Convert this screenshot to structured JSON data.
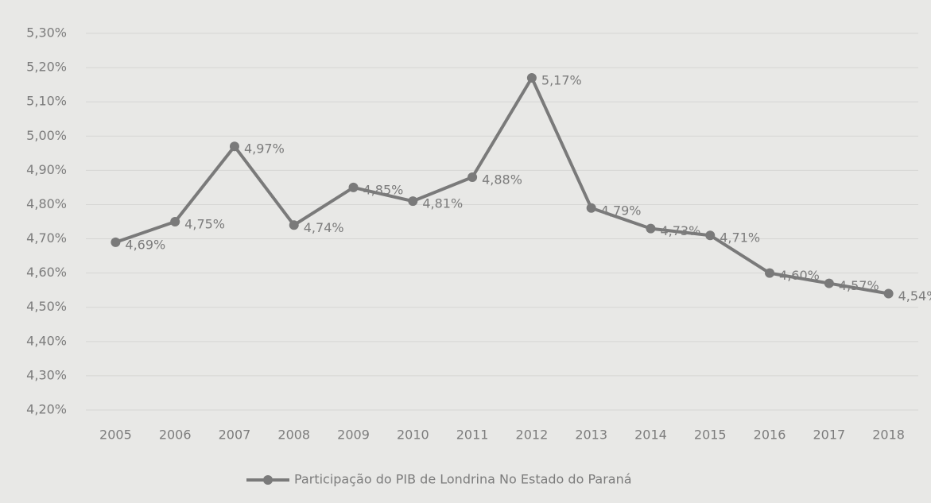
{
  "chart_data": {
    "type": "line",
    "categories": [
      "2005",
      "2006",
      "2007",
      "2008",
      "2009",
      "2010",
      "2011",
      "2012",
      "2013",
      "2014",
      "2015",
      "2016",
      "2017",
      "2018"
    ],
    "series": [
      {
        "name": "Participação do PIB de Londrina No Estado do Paraná",
        "color": "#7a7a7a",
        "values": [
          4.69,
          4.75,
          4.97,
          4.74,
          4.85,
          4.81,
          4.88,
          5.17,
          4.79,
          4.73,
          4.71,
          4.6,
          4.57,
          4.54
        ],
        "value_labels": [
          "4,69%",
          "4,75%",
          "4,97%",
          "4,74%",
          "4,85%",
          "4,81%",
          "4,88%",
          "5,17%",
          "4,79%",
          "4,73%",
          "4,71%",
          "4,60%",
          "4,57%",
          "4,54%"
        ]
      }
    ],
    "ylim": [
      4.2,
      5.3
    ],
    "yticks": [
      {
        "value": 4.2,
        "label": "4,20%"
      },
      {
        "value": 4.3,
        "label": "4,30%"
      },
      {
        "value": 4.4,
        "label": "4,40%"
      },
      {
        "value": 4.5,
        "label": "4,50%"
      },
      {
        "value": 4.6,
        "label": "4,60%"
      },
      {
        "value": 4.7,
        "label": "4,70%"
      },
      {
        "value": 4.8,
        "label": "4,80%"
      },
      {
        "value": 4.9,
        "label": "4,90%"
      },
      {
        "value": 5.0,
        "label": "5,00%"
      },
      {
        "value": 5.1,
        "label": "5,10%"
      },
      {
        "value": 5.2,
        "label": "5,20%"
      },
      {
        "value": 5.3,
        "label": "5,30%"
      }
    ],
    "grid": true,
    "legend": "bottom"
  }
}
